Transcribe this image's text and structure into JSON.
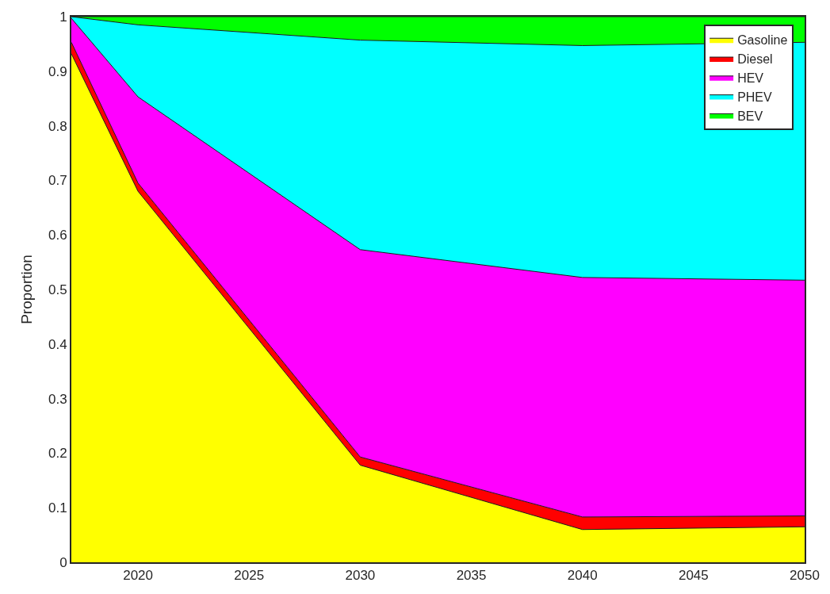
{
  "chart_data": {
    "type": "area",
    "stacked": true,
    "ylabel": "Proportion",
    "x": [
      2017,
      2020,
      2030,
      2040,
      2050
    ],
    "series": [
      {
        "name": "Gasoline",
        "color": "#ffff00",
        "values": [
          0.932,
          0.68,
          0.178,
          0.06,
          0.065
        ]
      },
      {
        "name": "Diesel",
        "color": "#ff0000",
        "values": [
          0.021,
          0.015,
          0.015,
          0.023,
          0.02
        ]
      },
      {
        "name": "HEV",
        "color": "#ff00ff",
        "values": [
          0.044,
          0.158,
          0.38,
          0.439,
          0.432
        ]
      },
      {
        "name": "PHEV",
        "color": "#00ffff",
        "values": [
          0.003,
          0.132,
          0.384,
          0.425,
          0.436
        ]
      },
      {
        "name": "BEV",
        "color": "#00ff00",
        "values": [
          0,
          0.015,
          0.043,
          0.053,
          0.047
        ]
      }
    ],
    "xlim": [
      2017,
      2050
    ],
    "xticks": [
      2020,
      2025,
      2030,
      2035,
      2040,
      2045,
      2050
    ],
    "ylim": [
      0,
      1
    ],
    "yticks": [
      0,
      0.1,
      0.2,
      0.3,
      0.4,
      0.5,
      0.6,
      0.7,
      0.8,
      0.9,
      1
    ],
    "legend": "top right"
  }
}
